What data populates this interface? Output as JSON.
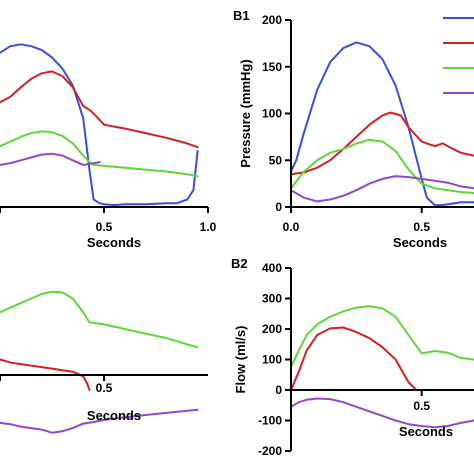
{
  "chart_data": [
    {
      "type": "line",
      "id": "A1",
      "panel_label": "",
      "xlabel": "Seconds",
      "ylabel": "",
      "xlim": [
        0.0,
        1.0
      ],
      "ylim": [
        0,
        200
      ],
      "xticks": [
        0.0,
        0.5,
        1.0
      ],
      "xtick_labels": [
        "",
        "0.5",
        "1.0"
      ],
      "yticks": [],
      "ytick_labels": [],
      "grid": false,
      "series": [
        {
          "color": "#3a4fd8",
          "x": [
            0.0,
            0.05,
            0.1,
            0.15,
            0.2,
            0.25,
            0.3,
            0.35,
            0.4,
            0.43,
            0.45,
            0.48,
            0.5,
            0.55,
            0.6,
            0.7,
            0.8,
            0.85,
            0.9,
            0.93,
            0.95
          ],
          "y": [
            165,
            172,
            174,
            172,
            168,
            160,
            148,
            130,
            95,
            40,
            8,
            4,
            3,
            2,
            3,
            3,
            4,
            4,
            8,
            18,
            60
          ]
        },
        {
          "color": "#d42020",
          "x": [
            0.0,
            0.05,
            0.1,
            0.15,
            0.2,
            0.25,
            0.3,
            0.35,
            0.4,
            0.43,
            0.45,
            0.5,
            0.55,
            0.6,
            0.7,
            0.8,
            0.9,
            0.95
          ],
          "y": [
            112,
            118,
            128,
            137,
            143,
            145,
            140,
            128,
            108,
            104,
            100,
            88,
            86,
            84,
            79,
            74,
            68,
            64
          ]
        },
        {
          "color": "#5ed838",
          "x": [
            0.0,
            0.05,
            0.1,
            0.15,
            0.2,
            0.25,
            0.3,
            0.35,
            0.4,
            0.43,
            0.45,
            0.5,
            0.6,
            0.7,
            0.8,
            0.9,
            0.95
          ],
          "y": [
            65,
            70,
            75,
            79,
            81,
            80,
            76,
            68,
            55,
            48,
            45,
            44,
            42,
            40,
            38,
            35,
            33
          ]
        },
        {
          "color": "#9448c8",
          "x": [
            0.0,
            0.05,
            0.1,
            0.15,
            0.2,
            0.25,
            0.3,
            0.35,
            0.4,
            0.43,
            0.45,
            0.48
          ],
          "y": [
            45,
            47,
            50,
            53,
            56,
            57,
            55,
            50,
            45,
            46,
            47,
            48
          ]
        }
      ]
    },
    {
      "type": "line",
      "id": "B1",
      "panel_label": "B1",
      "xlabel": "Seconds",
      "ylabel": "Pressure (mmHg)",
      "xlim": [
        0.0,
        0.7
      ],
      "ylim": [
        0,
        200
      ],
      "xticks": [
        0.0,
        0.5
      ],
      "xtick_labels": [
        "0.0",
        "0.5"
      ],
      "yticks": [
        0,
        50,
        100,
        150,
        200
      ],
      "ytick_labels": [
        "0",
        "50",
        "100",
        "150",
        "200"
      ],
      "grid": false,
      "series": [
        {
          "color": "#3a4fd8",
          "x": [
            0.0,
            0.02,
            0.05,
            0.1,
            0.15,
            0.2,
            0.25,
            0.3,
            0.35,
            0.4,
            0.45,
            0.5,
            0.52,
            0.55,
            0.58,
            0.6,
            0.65,
            0.7
          ],
          "y": [
            38,
            50,
            80,
            125,
            155,
            170,
            176,
            172,
            158,
            130,
            85,
            30,
            10,
            2,
            2,
            3,
            5,
            5
          ]
        },
        {
          "color": "#d42020",
          "x": [
            0.0,
            0.05,
            0.1,
            0.15,
            0.2,
            0.25,
            0.3,
            0.35,
            0.38,
            0.42,
            0.45,
            0.5,
            0.55,
            0.58,
            0.62,
            0.65,
            0.7
          ],
          "y": [
            35,
            37,
            42,
            50,
            62,
            75,
            88,
            98,
            101,
            98,
            85,
            70,
            65,
            68,
            62,
            58,
            55
          ]
        },
        {
          "color": "#5ed838",
          "x": [
            0.0,
            0.05,
            0.1,
            0.15,
            0.2,
            0.25,
            0.3,
            0.35,
            0.4,
            0.45,
            0.5,
            0.55,
            0.6,
            0.65,
            0.7
          ],
          "y": [
            20,
            38,
            50,
            58,
            62,
            68,
            72,
            70,
            60,
            40,
            25,
            20,
            18,
            16,
            15
          ]
        },
        {
          "color": "#9448c8",
          "x": [
            0.0,
            0.05,
            0.1,
            0.15,
            0.2,
            0.25,
            0.3,
            0.35,
            0.4,
            0.45,
            0.5,
            0.55,
            0.6,
            0.65,
            0.7
          ],
          "y": [
            18,
            10,
            6,
            8,
            12,
            18,
            25,
            30,
            33,
            32,
            30,
            28,
            26,
            22,
            20
          ]
        }
      ]
    },
    {
      "type": "line",
      "id": "A2",
      "panel_label": "",
      "xlabel": "Seconds",
      "ylabel": "",
      "xlim": [
        0.0,
        1.0
      ],
      "ylim": [
        -200,
        400
      ],
      "xticks": [
        0.0,
        0.5
      ],
      "xtick_labels": [
        "",
        "0.5"
      ],
      "yticks": [],
      "ytick_labels": [],
      "grid": false,
      "series": [
        {
          "color": "#5ed838",
          "x": [
            0.0,
            0.05,
            0.1,
            0.15,
            0.2,
            0.25,
            0.3,
            0.35,
            0.4,
            0.43,
            0.45,
            0.5,
            0.6,
            0.7,
            0.8,
            0.9,
            0.95
          ],
          "y": [
            255,
            270,
            285,
            300,
            315,
            322,
            320,
            300,
            255,
            222,
            220,
            215,
            200,
            185,
            170,
            150,
            140
          ]
        },
        {
          "color": "#d42020",
          "x": [
            0.0,
            0.05,
            0.1,
            0.15,
            0.2,
            0.25,
            0.3,
            0.35,
            0.4,
            0.42,
            0.43
          ],
          "y": [
            100,
            90,
            85,
            80,
            75,
            70,
            65,
            60,
            45,
            20,
            0
          ]
        },
        {
          "color": "#9448c8",
          "x": [
            0.0,
            0.05,
            0.1,
            0.15,
            0.2,
            0.25,
            0.3,
            0.35,
            0.4,
            0.45,
            0.5,
            0.6,
            0.7,
            0.8,
            0.9,
            0.95
          ],
          "y": [
            -108,
            -112,
            -120,
            -125,
            -130,
            -140,
            -135,
            -125,
            -110,
            -105,
            -98,
            -90,
            -82,
            -75,
            -68,
            -65
          ]
        }
      ]
    },
    {
      "type": "line",
      "id": "B2",
      "panel_label": "B2",
      "xlabel": "Seconds",
      "ylabel": "Flow (ml/s)",
      "xlim": [
        0.0,
        0.7
      ],
      "ylim": [
        -200,
        400
      ],
      "xticks": [
        0.5
      ],
      "xtick_labels": [
        "0.5"
      ],
      "yticks": [
        -200,
        -100,
        0,
        100,
        200,
        300,
        400
      ],
      "ytick_labels": [
        "-200",
        "-100",
        "0",
        "100",
        "200",
        "300",
        "400"
      ],
      "grid": false,
      "series": [
        {
          "color": "#5ed838",
          "x": [
            0.0,
            0.03,
            0.06,
            0.1,
            0.15,
            0.2,
            0.25,
            0.3,
            0.35,
            0.4,
            0.45,
            0.5,
            0.55,
            0.6,
            0.65,
            0.7
          ],
          "y": [
            75,
            130,
            180,
            215,
            240,
            258,
            270,
            275,
            268,
            240,
            180,
            120,
            128,
            122,
            105,
            100
          ]
        },
        {
          "color": "#d42020",
          "x": [
            0.0,
            0.03,
            0.06,
            0.1,
            0.15,
            0.2,
            0.25,
            0.3,
            0.35,
            0.4,
            0.43,
            0.45,
            0.48,
            0.5,
            0.55,
            0.6,
            0.7
          ],
          "y": [
            0,
            60,
            130,
            180,
            202,
            205,
            190,
            170,
            140,
            100,
            55,
            25,
            0,
            0,
            0,
            0,
            0
          ]
        },
        {
          "color": "#9448c8",
          "x": [
            0.0,
            0.03,
            0.06,
            0.1,
            0.15,
            0.2,
            0.25,
            0.3,
            0.35,
            0.4,
            0.45,
            0.5,
            0.55,
            0.6,
            0.65,
            0.7
          ],
          "y": [
            -55,
            -40,
            -32,
            -28,
            -30,
            -40,
            -55,
            -70,
            -85,
            -100,
            -112,
            -118,
            -122,
            -118,
            -108,
            -100
          ]
        }
      ]
    }
  ]
}
